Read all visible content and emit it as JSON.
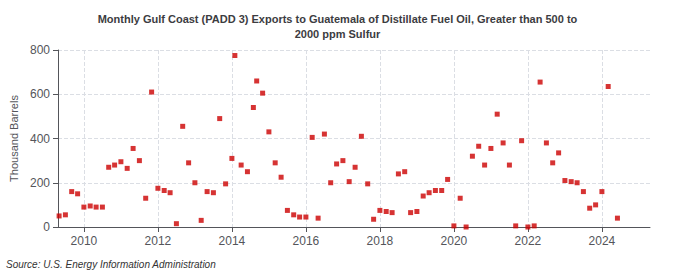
{
  "chart_data": {
    "type": "scatter",
    "title": "Monthly Gulf Coast (PADD 3) Exports to Guatemala of Distillate Fuel Oil, Greater than 500 to\n2000 ppm Sulfur",
    "ylabel": "Thousand Barrels",
    "source": "Source: U.S. Energy Information Administration",
    "color": "#cc0000",
    "marker": "square",
    "grid": true,
    "xlim": [
      2009.3,
      2025.3
    ],
    "xticks": [
      2010,
      2012,
      2014,
      2016,
      2018,
      2020,
      2022,
      2024
    ],
    "ylim": [
      0,
      800
    ],
    "yticks": [
      0,
      200,
      400,
      600,
      800
    ],
    "x": [
      2009.33,
      2009.5,
      2009.67,
      2009.83,
      2010.0,
      2010.17,
      2010.33,
      2010.5,
      2010.67,
      2010.83,
      2011.0,
      2011.17,
      2011.33,
      2011.5,
      2011.67,
      2011.83,
      2012.0,
      2012.17,
      2012.33,
      2012.5,
      2012.67,
      2012.83,
      2013.0,
      2013.17,
      2013.33,
      2013.5,
      2013.67,
      2013.83,
      2014.0,
      2014.08,
      2014.25,
      2014.42,
      2014.58,
      2014.67,
      2014.83,
      2015.0,
      2015.17,
      2015.33,
      2015.5,
      2015.67,
      2015.83,
      2016.0,
      2016.17,
      2016.33,
      2016.5,
      2016.67,
      2016.83,
      2017.0,
      2017.17,
      2017.33,
      2017.5,
      2017.67,
      2017.83,
      2018.0,
      2018.17,
      2018.33,
      2018.5,
      2018.67,
      2018.83,
      2019.0,
      2019.17,
      2019.33,
      2019.5,
      2019.67,
      2019.83,
      2020.0,
      2020.17,
      2020.33,
      2020.5,
      2020.67,
      2020.83,
      2021.0,
      2021.17,
      2021.33,
      2021.5,
      2021.67,
      2021.83,
      2022.0,
      2022.17,
      2022.33,
      2022.5,
      2022.67,
      2022.83,
      2023.0,
      2023.17,
      2023.33,
      2023.5,
      2023.67,
      2023.83,
      2024.0,
      2024.17,
      2024.42
    ],
    "values": [
      50,
      55,
      160,
      150,
      90,
      95,
      90,
      90,
      270,
      280,
      295,
      265,
      355,
      300,
      130,
      610,
      175,
      165,
      155,
      15,
      455,
      290,
      200,
      30,
      160,
      155,
      490,
      195,
      310,
      775,
      280,
      250,
      540,
      660,
      605,
      430,
      290,
      225,
      75,
      55,
      45,
      45,
      405,
      40,
      420,
      200,
      285,
      300,
      205,
      270,
      410,
      195,
      35,
      75,
      70,
      65,
      240,
      250,
      65,
      70,
      140,
      155,
      165,
      165,
      215,
      5,
      130,
      0,
      320,
      365,
      280,
      355,
      510,
      380,
      280,
      5,
      390,
      0,
      5,
      655,
      380,
      290,
      335,
      210,
      205,
      200,
      160,
      85,
      100,
      160,
      635,
      40
    ]
  }
}
